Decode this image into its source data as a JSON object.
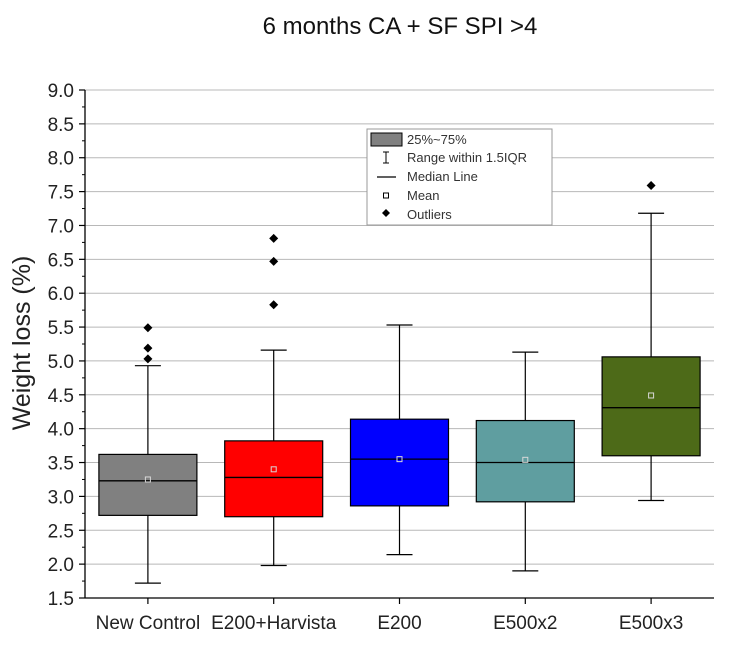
{
  "chart_data": {
    "type": "box",
    "title": "6 months CA + SF SPI >4",
    "xlabel": "",
    "ylabel": "Weight loss (%)",
    "ylim": [
      1.5,
      9.0
    ],
    "y_ticks": [
      "1.5",
      "2.0",
      "2.5",
      "3.0",
      "3.5",
      "4.0",
      "4.5",
      "5.0",
      "5.5",
      "6.0",
      "6.5",
      "7.0",
      "7.5",
      "8.0",
      "8.5",
      "9.0"
    ],
    "grid": true,
    "legend_position": "top-center",
    "legend": {
      "box": "25%~75%",
      "range": "Range within 1.5IQR",
      "median": "Median Line",
      "mean": "Mean",
      "outliers": "Outliers"
    },
    "categories": [
      "New Control",
      "E200+Harvista",
      "E200",
      "E500x2",
      "E500x3"
    ],
    "boxes": [
      {
        "name": "New Control",
        "whisker_low": 1.72,
        "q1": 2.72,
        "median": 3.23,
        "q3": 3.62,
        "whisker_high": 4.93,
        "mean": 3.25,
        "outliers": [
          5.03,
          5.19,
          5.49
        ],
        "color": "#808080"
      },
      {
        "name": "E200+Harvista",
        "whisker_low": 1.98,
        "q1": 2.7,
        "median": 3.28,
        "q3": 3.82,
        "whisker_high": 5.16,
        "mean": 3.4,
        "outliers": [
          5.83,
          6.47,
          6.81
        ],
        "color": "#ff0000"
      },
      {
        "name": "E200",
        "whisker_low": 2.14,
        "q1": 2.86,
        "median": 3.55,
        "q3": 4.14,
        "whisker_high": 5.53,
        "mean": 3.55,
        "outliers": [],
        "color": "#0000ff"
      },
      {
        "name": "E500x2",
        "whisker_low": 1.9,
        "q1": 2.92,
        "median": 3.5,
        "q3": 4.12,
        "whisker_high": 5.13,
        "mean": 3.54,
        "outliers": [],
        "color": "#5f9ea0"
      },
      {
        "name": "E500x3",
        "whisker_low": 2.94,
        "q1": 3.6,
        "median": 4.31,
        "q3": 5.06,
        "whisker_high": 7.18,
        "mean": 4.49,
        "outliers": [
          7.59
        ],
        "color": "#4d6a18"
      }
    ]
  }
}
